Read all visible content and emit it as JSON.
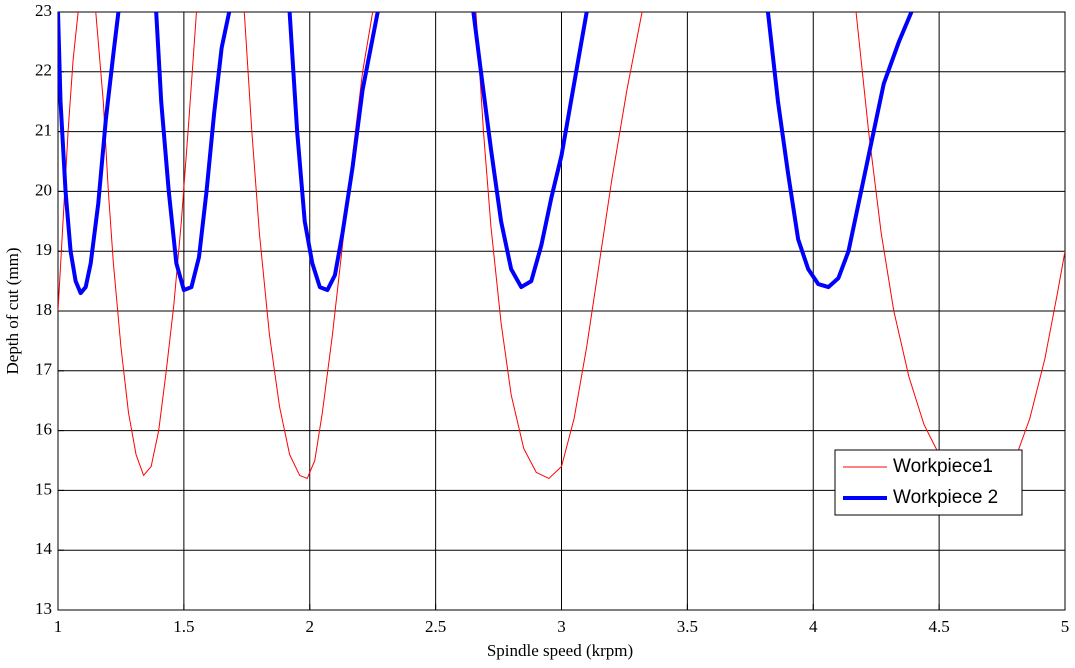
{
  "chart_data": {
    "type": "line",
    "xlabel": "Spindle speed (krpm)",
    "ylabel": "Depth of cut (mm)",
    "xlim": [
      1,
      5
    ],
    "ylim": [
      13,
      23
    ],
    "xticks": [
      1,
      1.5,
      2,
      2.5,
      3,
      3.5,
      4,
      4.5,
      5
    ],
    "yticks": [
      13,
      14,
      15,
      16,
      17,
      18,
      19,
      20,
      21,
      22,
      23
    ],
    "grid": true,
    "legend": "lower right",
    "series": [
      {
        "name": "Workpiece1",
        "color": "#ff0000",
        "linewidth": 1,
        "x": [
          1.0,
          1.02,
          1.04,
          1.06,
          1.08,
          null,
          1.15,
          1.18,
          1.2,
          1.22,
          1.25,
          1.28,
          1.31,
          1.34,
          1.37,
          1.4,
          1.43,
          1.46,
          1.49,
          1.52,
          1.55,
          null,
          1.74,
          1.77,
          1.8,
          1.84,
          1.88,
          1.92,
          1.96,
          1.99,
          2.02,
          2.05,
          2.09,
          2.13,
          2.17,
          2.21,
          2.25,
          null,
          2.66,
          2.69,
          2.72,
          2.76,
          2.8,
          2.85,
          2.9,
          2.95,
          3.0,
          3.05,
          3.1,
          3.15,
          3.2,
          3.26,
          3.32,
          null,
          4.17,
          4.22,
          4.27,
          4.32,
          4.38,
          4.44,
          4.5,
          4.56,
          4.62,
          4.68,
          4.74,
          4.8,
          4.86,
          4.92,
          4.97,
          5.0
        ],
        "values": [
          18,
          19.5,
          21,
          22.2,
          23,
          null,
          23,
          21.5,
          20,
          18.8,
          17.4,
          16.3,
          15.6,
          15.25,
          15.4,
          16.0,
          17.0,
          18.1,
          19.5,
          21.2,
          23,
          null,
          23,
          21,
          19.3,
          17.6,
          16.4,
          15.6,
          15.25,
          15.2,
          15.5,
          16.3,
          17.6,
          19.1,
          20.6,
          22,
          23,
          null,
          23,
          21,
          19.4,
          17.8,
          16.6,
          15.7,
          15.3,
          15.2,
          15.4,
          16.2,
          17.4,
          18.8,
          20.2,
          21.7,
          23,
          null,
          23,
          21,
          19.3,
          18.0,
          16.9,
          16.1,
          15.6,
          15.3,
          15.12,
          15.1,
          15.15,
          15.5,
          16.2,
          17.2,
          18.3,
          19.0
        ]
      },
      {
        "name": "Workpiece 2",
        "color": "#0000ff",
        "linewidth": 4,
        "x": [
          1.0,
          1.01,
          1.03,
          1.05,
          1.07,
          1.09,
          1.11,
          1.13,
          1.16,
          1.19,
          1.22,
          1.24,
          null,
          1.39,
          1.41,
          1.44,
          1.47,
          1.5,
          1.53,
          1.56,
          1.59,
          1.62,
          1.65,
          1.68,
          null,
          1.92,
          1.95,
          1.98,
          2.01,
          2.04,
          2.07,
          2.1,
          2.13,
          2.17,
          2.21,
          2.27,
          null,
          2.65,
          2.68,
          2.72,
          2.76,
          2.8,
          2.84,
          2.88,
          2.92,
          2.96,
          3.0,
          3.05,
          3.1,
          null,
          3.82,
          3.86,
          3.9,
          3.94,
          3.98,
          4.02,
          4.06,
          4.1,
          4.14,
          4.18,
          4.23,
          4.28,
          4.34,
          4.39
        ],
        "values": [
          23,
          21.5,
          20,
          19,
          18.5,
          18.3,
          18.4,
          18.8,
          19.8,
          21.2,
          22.3,
          23,
          null,
          23,
          21.5,
          20,
          18.8,
          18.35,
          18.4,
          18.9,
          20,
          21.3,
          22.4,
          23,
          null,
          23,
          21,
          19.5,
          18.8,
          18.4,
          18.35,
          18.6,
          19.3,
          20.4,
          21.7,
          23,
          null,
          23,
          22,
          20.7,
          19.5,
          18.7,
          18.4,
          18.5,
          19.1,
          19.9,
          20.6,
          21.8,
          23,
          null,
          23,
          21.5,
          20.3,
          19.2,
          18.7,
          18.45,
          18.4,
          18.55,
          19.0,
          19.8,
          20.8,
          21.8,
          22.5,
          23
        ]
      }
    ]
  }
}
